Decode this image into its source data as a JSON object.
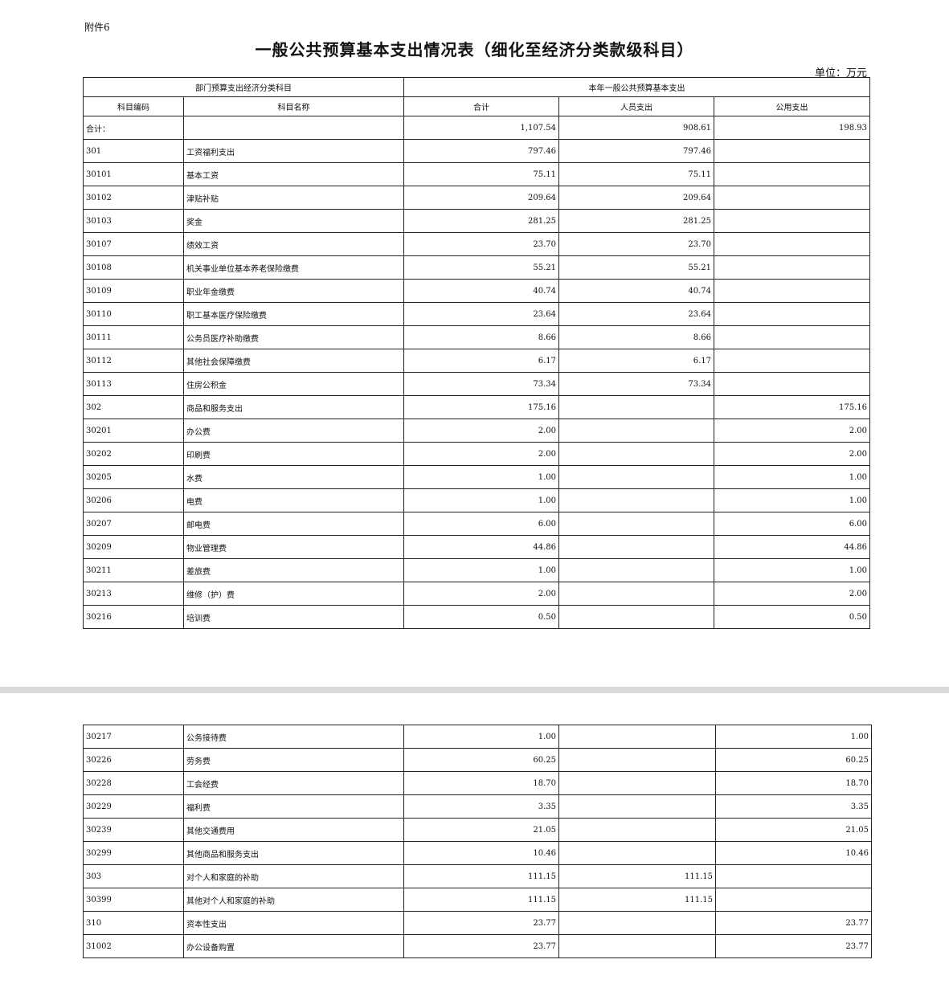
{
  "attachment_label": "附件6",
  "title": "一般公共预算基本支出情况表（细化至经济分类款级科目）",
  "unit": "单位：万元",
  "header": {
    "group_left": "部门预算支出经济分类科目",
    "group_right": "本年一般公共预算基本支出",
    "code": "科目编码",
    "name": "科目名称",
    "total": "合计",
    "personnel": "人员支出",
    "public": "公用支出"
  },
  "page1_rows": [
    [
      "合计：",
      "",
      "1,107.54",
      "908.61",
      "198.93"
    ],
    [
      "301",
      "工资福利支出",
      "797.46",
      "797.46",
      ""
    ],
    [
      "30101",
      "基本工资",
      "75.11",
      "75.11",
      ""
    ],
    [
      "30102",
      "津贴补贴",
      "209.64",
      "209.64",
      ""
    ],
    [
      "30103",
      "奖金",
      "281.25",
      "281.25",
      ""
    ],
    [
      "30107",
      "绩效工资",
      "23.70",
      "23.70",
      ""
    ],
    [
      "30108",
      "机关事业单位基本养老保险缴费",
      "55.21",
      "55.21",
      ""
    ],
    [
      "30109",
      "职业年金缴费",
      "40.74",
      "40.74",
      ""
    ],
    [
      "30110",
      "职工基本医疗保险缴费",
      "23.64",
      "23.64",
      ""
    ],
    [
      "30111",
      "公务员医疗补助缴费",
      "8.66",
      "8.66",
      ""
    ],
    [
      "30112",
      "其他社会保障缴费",
      "6.17",
      "6.17",
      ""
    ],
    [
      "30113",
      "住房公积金",
      "73.34",
      "73.34",
      ""
    ],
    [
      "302",
      "商品和服务支出",
      "175.16",
      "",
      "175.16"
    ],
    [
      "30201",
      "办公费",
      "2.00",
      "",
      "2.00"
    ],
    [
      "30202",
      "印刷费",
      "2.00",
      "",
      "2.00"
    ],
    [
      "30205",
      "水费",
      "1.00",
      "",
      "1.00"
    ],
    [
      "30206",
      "电费",
      "1.00",
      "",
      "1.00"
    ],
    [
      "30207",
      "邮电费",
      "6.00",
      "",
      "6.00"
    ],
    [
      "30209",
      "物业管理费",
      "44.86",
      "",
      "44.86"
    ],
    [
      "30211",
      "差旅费",
      "1.00",
      "",
      "1.00"
    ],
    [
      "30213",
      "维修（护）费",
      "2.00",
      "",
      "2.00"
    ],
    [
      "30216",
      "培训费",
      "0.50",
      "",
      "0.50"
    ]
  ],
  "page2_rows": [
    [
      "30217",
      "公务接待费",
      "1.00",
      "",
      "1.00"
    ],
    [
      "30226",
      "劳务费",
      "60.25",
      "",
      "60.25"
    ],
    [
      "30228",
      "工会经费",
      "18.70",
      "",
      "18.70"
    ],
    [
      "30229",
      "福利费",
      "3.35",
      "",
      "3.35"
    ],
    [
      "30239",
      "其他交通费用",
      "21.05",
      "",
      "21.05"
    ],
    [
      "30299",
      "其他商品和服务支出",
      "10.46",
      "",
      "10.46"
    ],
    [
      "303",
      "对个人和家庭的补助",
      "111.15",
      "111.15",
      ""
    ],
    [
      "30399",
      "其他对个人和家庭的补助",
      "111.15",
      "111.15",
      ""
    ],
    [
      "310",
      "资本性支出",
      "23.77",
      "",
      "23.77"
    ],
    [
      "31002",
      "办公设备购置",
      "23.77",
      "",
      "23.77"
    ]
  ]
}
